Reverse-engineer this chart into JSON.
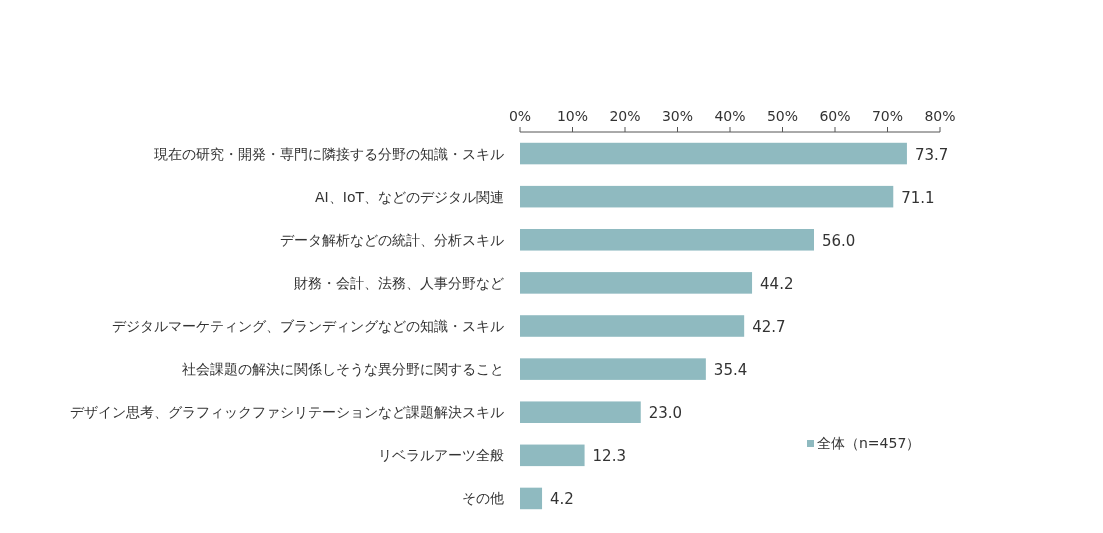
{
  "chart_data": {
    "type": "bar",
    "orientation": "horizontal",
    "categories": [
      "現在の研究・開発・専門に隣接する分野の知識・スキル",
      "AI、IoT、などのデジタル関連",
      "データ解析などの統計、分析スキル",
      "財務・会計、法務、人事分野など",
      "デジタルマーケティング、ブランディングなどの知識・スキル",
      "社会課題の解決に関係しそうな異分野に関すること",
      "デザイン思考、グラフィックファシリテーションなど課題解決スキル",
      "リベラルアーツ全般",
      "その他"
    ],
    "series": [
      {
        "name": "全体（n=457）",
        "color": "#8fbac0",
        "values": [
          73.7,
          71.1,
          56.0,
          44.2,
          42.7,
          35.4,
          23.0,
          12.3,
          4.2
        ],
        "value_labels": [
          "73.7",
          "71.1",
          "56.0",
          "44.2",
          "42.7",
          "35.4",
          "23.0",
          "12.3",
          "4.2"
        ]
      }
    ],
    "xlim": [
      0,
      80
    ],
    "xticks": [
      {
        "value": 0,
        "label": "0%"
      },
      {
        "value": 10,
        "label": "10%"
      },
      {
        "value": 20,
        "label": "20%"
      },
      {
        "value": 30,
        "label": "30%"
      },
      {
        "value": 40,
        "label": "40%"
      },
      {
        "value": 50,
        "label": "50%"
      },
      {
        "value": 60,
        "label": "60%"
      },
      {
        "value": 70,
        "label": "70%"
      },
      {
        "value": 80,
        "label": "80%"
      }
    ],
    "legend": "right",
    "grid": false
  }
}
